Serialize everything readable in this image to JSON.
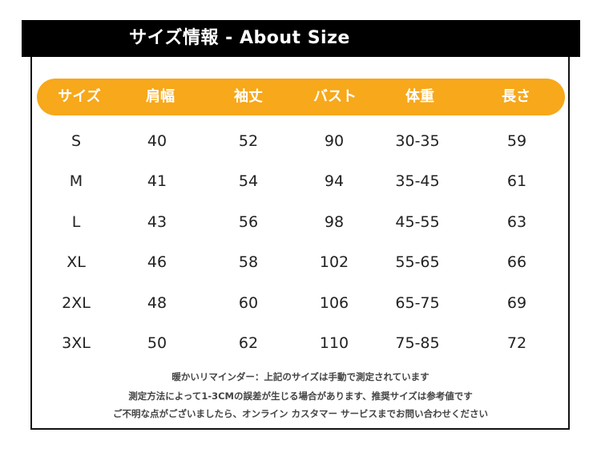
{
  "title": "サイズ情報 - About Size",
  "table": {
    "headers": [
      "サイズ",
      "肩幅",
      "袖丈",
      "バスト",
      "体重",
      "長さ"
    ],
    "rows": [
      [
        "S",
        "40",
        "52",
        "90",
        "30-35",
        "59"
      ],
      [
        "M",
        "41",
        "54",
        "94",
        "35-45",
        "61"
      ],
      [
        "L",
        "43",
        "56",
        "98",
        "45-55",
        "63"
      ],
      [
        "XL",
        "46",
        "58",
        "102",
        "55-65",
        "66"
      ],
      [
        "2XL",
        "48",
        "60",
        "106",
        "65-75",
        "69"
      ],
      [
        "3XL",
        "50",
        "62",
        "110",
        "75-85",
        "72"
      ]
    ]
  },
  "notes": [
    "暖かいリマインダー：上記のサイズは手動で測定されています",
    "測定方法によって1-3CMの誤差が生じる場合があります、推奨サイズは参考値です",
    "ご不明な点がございましたら、オンライン カスタマー サービスまでお問い合わせください"
  ],
  "colors": {
    "header_bg": "#f7a81b",
    "title_bg": "#000000",
    "header_text": "#ffffff"
  }
}
